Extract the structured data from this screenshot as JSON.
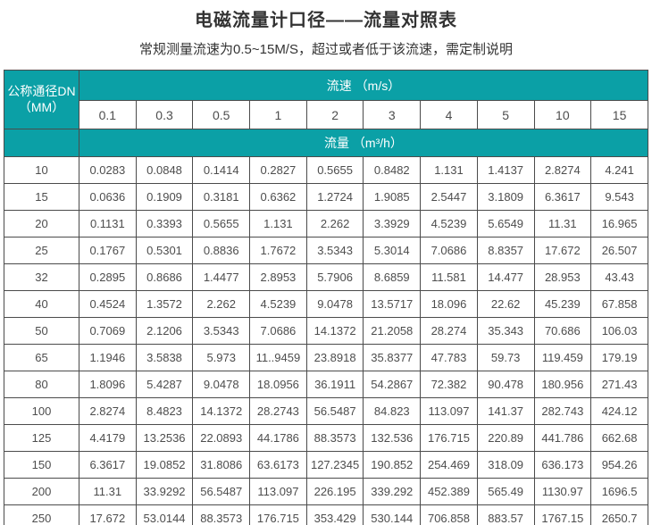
{
  "page": {
    "title": "电磁流量计口径——流量对照表",
    "subtitle": "常规测量流速为0.5~15M/S，超过或者低于该流速，需定制说明"
  },
  "table": {
    "corner_header_line1": "公称通径DN",
    "corner_header_line2": "（MM）",
    "velocity_header": "流速 （m/s）",
    "flow_header": "流量 （m³/h）",
    "velocities": [
      "0.1",
      "0.3",
      "0.5",
      "1",
      "2",
      "3",
      "4",
      "5",
      "10",
      "15"
    ],
    "rows": [
      {
        "dn": "10",
        "values": [
          "0.0283",
          "0.0848",
          "0.1414",
          "0.2827",
          "0.5655",
          "0.8482",
          "1.131",
          "1.4137",
          "2.8274",
          "4.241"
        ]
      },
      {
        "dn": "15",
        "values": [
          "0.0636",
          "0.1909",
          "0.3181",
          "0.6362",
          "1.2724",
          "1.9085",
          "2.5447",
          "3.1809",
          "6.3617",
          "9.543"
        ]
      },
      {
        "dn": "20",
        "values": [
          "0.1131",
          "0.3393",
          "0.5655",
          "1.131",
          "2.262",
          "3.3929",
          "4.5239",
          "5.6549",
          "11.31",
          "16.965"
        ]
      },
      {
        "dn": "25",
        "values": [
          "0.1767",
          "0.5301",
          "0.8836",
          "1.7672",
          "3.5343",
          "5.3014",
          "7.0686",
          "8.8357",
          "17.672",
          "26.507"
        ]
      },
      {
        "dn": "32",
        "values": [
          "0.2895",
          "0.8686",
          "1.4477",
          "2.8953",
          "5.7906",
          "8.6859",
          "11.581",
          "14.477",
          "28.953",
          "43.43"
        ]
      },
      {
        "dn": "40",
        "values": [
          "0.4524",
          "1.3572",
          "2.262",
          "4.5239",
          "9.0478",
          "13.5717",
          "18.096",
          "22.62",
          "45.239",
          "67.858"
        ]
      },
      {
        "dn": "50",
        "values": [
          "0.7069",
          "2.1206",
          "3.5343",
          "7.0686",
          "14.1372",
          "21.2058",
          "28.274",
          "35.343",
          "70.686",
          "106.03"
        ]
      },
      {
        "dn": "65",
        "values": [
          "1.1946",
          "3.5838",
          "5.973",
          "11..9459",
          "23.8918",
          "35.8377",
          "47.783",
          "59.73",
          "119.459",
          "179.19"
        ]
      },
      {
        "dn": "80",
        "values": [
          "1.8096",
          "5.4287",
          "9.0478",
          "18.0956",
          "36.1911",
          "54.2867",
          "72.382",
          "90.478",
          "180.956",
          "271.43"
        ]
      },
      {
        "dn": "100",
        "values": [
          "2.8274",
          "8.4823",
          "14.1372",
          "28.2743",
          "56.5487",
          "84.823",
          "113.097",
          "141.37",
          "282.743",
          "424.12"
        ]
      },
      {
        "dn": "125",
        "values": [
          "4.4179",
          "13.2536",
          "22.0893",
          "44.1786",
          "88.3573",
          "132.536",
          "176.715",
          "220.89",
          "441.786",
          "662.68"
        ]
      },
      {
        "dn": "150",
        "values": [
          "6.3617",
          "19.0852",
          "31.8086",
          "63.6173",
          "127.2345",
          "190.852",
          "254.469",
          "318.09",
          "636.173",
          "954.26"
        ]
      },
      {
        "dn": "200",
        "values": [
          "11.31",
          "33.9292",
          "56.5487",
          "113.097",
          "226.195",
          "339.292",
          "452.389",
          "565.49",
          "1130.97",
          "1696.5"
        ]
      },
      {
        "dn": "250",
        "values": [
          "17.672",
          "53.0144",
          "88.3573",
          "176.715",
          "353.429",
          "530.144",
          "706.858",
          "883.57",
          "1767.15",
          "2650.7"
        ]
      }
    ]
  },
  "colors": {
    "teal": "#0ba0a6",
    "grid_border": "#4b4b4b",
    "header_border": "#6a4038",
    "body_text": "#4d4d4d",
    "header_text": "#ffffff",
    "title_text": "#333333"
  }
}
